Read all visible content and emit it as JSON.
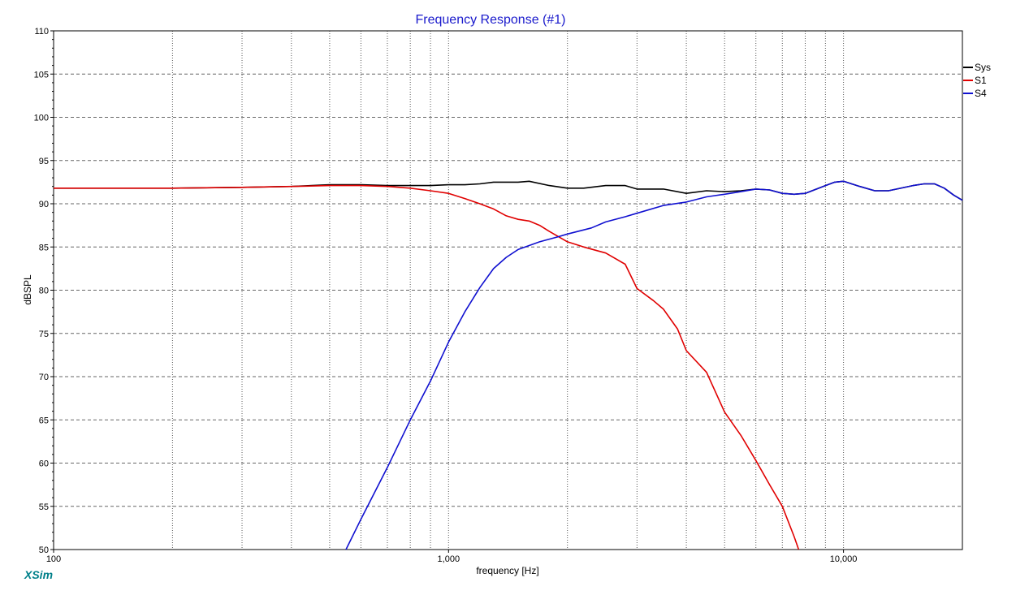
{
  "chart_data": {
    "type": "line",
    "title": "Frequency Response (#1)",
    "xlabel": "frequency [Hz]",
    "ylabel": "dBSPL",
    "x_scale": "log",
    "xlim": [
      100,
      20000
    ],
    "ylim": [
      50,
      110
    ],
    "x_tick_labels": [
      {
        "value": 100,
        "label": "100"
      },
      {
        "value": 1000,
        "label": "1,000"
      },
      {
        "value": 10000,
        "label": "10,000"
      }
    ],
    "y_tick_labels": [
      "50",
      "55",
      "60",
      "65",
      "70",
      "75",
      "80",
      "85",
      "90",
      "95",
      "100",
      "105",
      "110"
    ],
    "grid": true,
    "legend_position": "top-right",
    "series": [
      {
        "name": "Sys",
        "color": "#000000",
        "points": [
          [
            100,
            91.8
          ],
          [
            200,
            91.8
          ],
          [
            300,
            91.9
          ],
          [
            400,
            92.0
          ],
          [
            500,
            92.2
          ],
          [
            600,
            92.2
          ],
          [
            700,
            92.1
          ],
          [
            800,
            92.1
          ],
          [
            900,
            92.1
          ],
          [
            1000,
            92.2
          ],
          [
            1100,
            92.2
          ],
          [
            1200,
            92.3
          ],
          [
            1300,
            92.5
          ],
          [
            1400,
            92.5
          ],
          [
            1500,
            92.5
          ],
          [
            1600,
            92.6
          ],
          [
            1800,
            92.1
          ],
          [
            2000,
            91.8
          ],
          [
            2200,
            91.8
          ],
          [
            2500,
            92.1
          ],
          [
            2800,
            92.1
          ],
          [
            3000,
            91.7
          ],
          [
            3500,
            91.7
          ],
          [
            4000,
            91.2
          ],
          [
            4500,
            91.5
          ],
          [
            5000,
            91.4
          ],
          [
            5500,
            91.5
          ],
          [
            6000,
            91.7
          ],
          [
            6500,
            91.6
          ],
          [
            7000,
            91.2
          ],
          [
            7500,
            91.1
          ],
          [
            8000,
            91.2
          ],
          [
            9000,
            92.1
          ],
          [
            9500,
            92.5
          ],
          [
            10000,
            92.6
          ],
          [
            11000,
            92.0
          ],
          [
            12000,
            91.5
          ],
          [
            13000,
            91.5
          ],
          [
            15000,
            92.1
          ],
          [
            16000,
            92.3
          ],
          [
            17000,
            92.3
          ],
          [
            18000,
            91.8
          ],
          [
            19000,
            91.0
          ],
          [
            20000,
            90.4
          ]
        ]
      },
      {
        "name": "S1",
        "color": "#e00000",
        "points": [
          [
            100,
            91.8
          ],
          [
            200,
            91.8
          ],
          [
            300,
            91.9
          ],
          [
            400,
            92.0
          ],
          [
            500,
            92.1
          ],
          [
            600,
            92.1
          ],
          [
            700,
            92.0
          ],
          [
            800,
            91.8
          ],
          [
            900,
            91.5
          ],
          [
            1000,
            91.2
          ],
          [
            1100,
            90.6
          ],
          [
            1200,
            90.0
          ],
          [
            1300,
            89.4
          ],
          [
            1400,
            88.6
          ],
          [
            1500,
            88.2
          ],
          [
            1600,
            88.0
          ],
          [
            1700,
            87.5
          ],
          [
            1800,
            86.8
          ],
          [
            2000,
            85.6
          ],
          [
            2200,
            85.0
          ],
          [
            2500,
            84.3
          ],
          [
            2800,
            83.0
          ],
          [
            3000,
            80.2
          ],
          [
            3300,
            78.8
          ],
          [
            3500,
            77.8
          ],
          [
            3800,
            75.5
          ],
          [
            4000,
            73.0
          ],
          [
            4500,
            70.5
          ],
          [
            5000,
            65.9
          ],
          [
            5500,
            63.2
          ],
          [
            6000,
            60.3
          ],
          [
            6500,
            57.5
          ],
          [
            7000,
            55.0
          ],
          [
            7500,
            51.5
          ],
          [
            7700,
            50.0
          ]
        ]
      },
      {
        "name": "S4",
        "color": "#1010d0",
        "points": [
          [
            550,
            50.0
          ],
          [
            600,
            53.5
          ],
          [
            700,
            59.5
          ],
          [
            800,
            65.0
          ],
          [
            900,
            69.5
          ],
          [
            1000,
            74.0
          ],
          [
            1100,
            77.5
          ],
          [
            1200,
            80.3
          ],
          [
            1300,
            82.5
          ],
          [
            1400,
            83.8
          ],
          [
            1500,
            84.7
          ],
          [
            1700,
            85.6
          ],
          [
            1900,
            86.2
          ],
          [
            2000,
            86.5
          ],
          [
            2300,
            87.2
          ],
          [
            2500,
            87.9
          ],
          [
            2800,
            88.5
          ],
          [
            3000,
            88.9
          ],
          [
            3500,
            89.8
          ],
          [
            4000,
            90.2
          ],
          [
            4500,
            90.8
          ],
          [
            5000,
            91.1
          ],
          [
            5500,
            91.4
          ],
          [
            6000,
            91.7
          ],
          [
            6500,
            91.6
          ],
          [
            7000,
            91.2
          ],
          [
            7500,
            91.1
          ],
          [
            8000,
            91.2
          ],
          [
            9000,
            92.1
          ],
          [
            9500,
            92.5
          ],
          [
            10000,
            92.6
          ],
          [
            11000,
            92.0
          ],
          [
            12000,
            91.5
          ],
          [
            13000,
            91.5
          ],
          [
            15000,
            92.1
          ],
          [
            16000,
            92.3
          ],
          [
            17000,
            92.3
          ],
          [
            18000,
            91.8
          ],
          [
            19000,
            91.0
          ],
          [
            20000,
            90.4
          ]
        ]
      }
    ]
  },
  "footer": {
    "brand": "XSim"
  }
}
